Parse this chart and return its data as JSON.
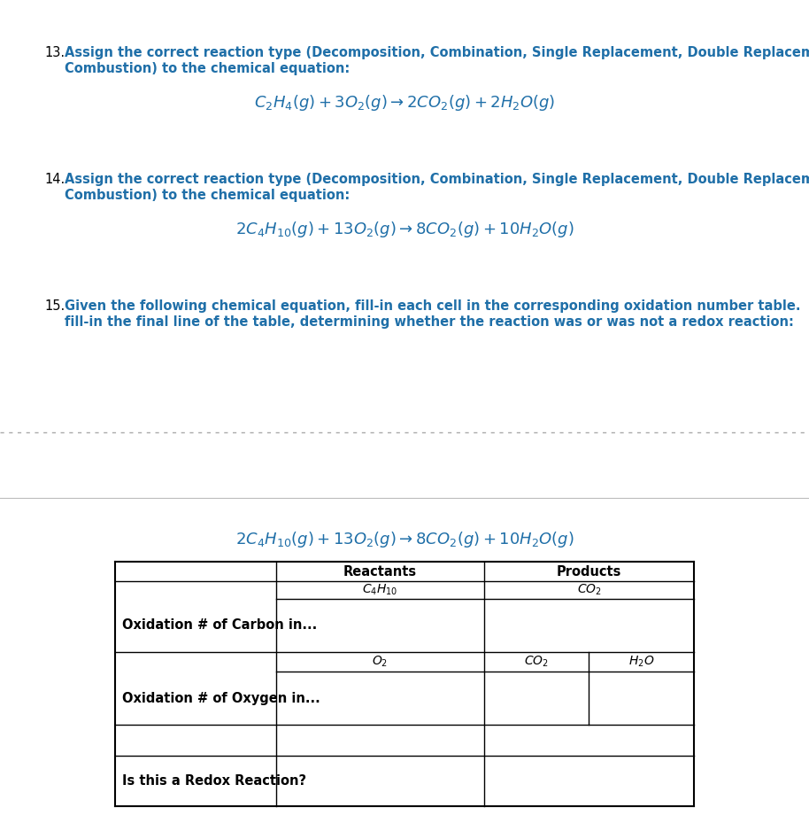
{
  "bg_color": "#ffffff",
  "gray_bg": "#e8e8e8",
  "text_color_black": "#000000",
  "text_color_teal": "#1f6fa8",
  "q13_number": "13.",
  "q13_text1": "Assign the correct reaction type (Decomposition, Combination, Single Replacement, Double Replacement,",
  "q13_text2": "Combustion) to the chemical equation:",
  "q13_eq": "$C_2H_4(g)+3O_2(g)\\rightarrow 2CO_2(g)+2H_2O(g)$",
  "q14_number": "14.",
  "q14_text1": "Assign the correct reaction type (Decomposition, Combination, Single Replacement, Double Replacement,",
  "q14_text2": "Combustion) to the chemical equation:",
  "q14_eq": "$2C_4H_{10}(g)+13O_2(g)\\rightarrow 8CO_2(g)+10H_2O(g)$",
  "q15_number": "15.",
  "q15_text1": "Given the following chemical equation, fill-in each cell in the corresponding oxidation number table.  Be sure to",
  "q15_text2": "fill-in the final line of the table, determining whether the reaction was or was not a redox reaction:",
  "section2_eq": "$2C_4H_{10}(g)+13O_2(g)\\rightarrow 8CO_2(g)+10H_2O(g)$",
  "table_header_reactants": "Reactants",
  "table_header_products": "Products",
  "table_sub1_left": "$C_4H_{10}$",
  "table_sub1_right": "$CO_2$",
  "table_row1_label": "Oxidation # of Carbon in...",
  "table_sub2_left": "$O_2$",
  "table_sub2_mid": "$CO_2$",
  "table_sub2_right": "$H_2O$",
  "table_row2_label": "Oxidation # of Oxygen in...",
  "table_row3_label": "Is this a Redox Reaction?",
  "dpi": 100,
  "fig_w": 9.14,
  "fig_h": 9.38
}
